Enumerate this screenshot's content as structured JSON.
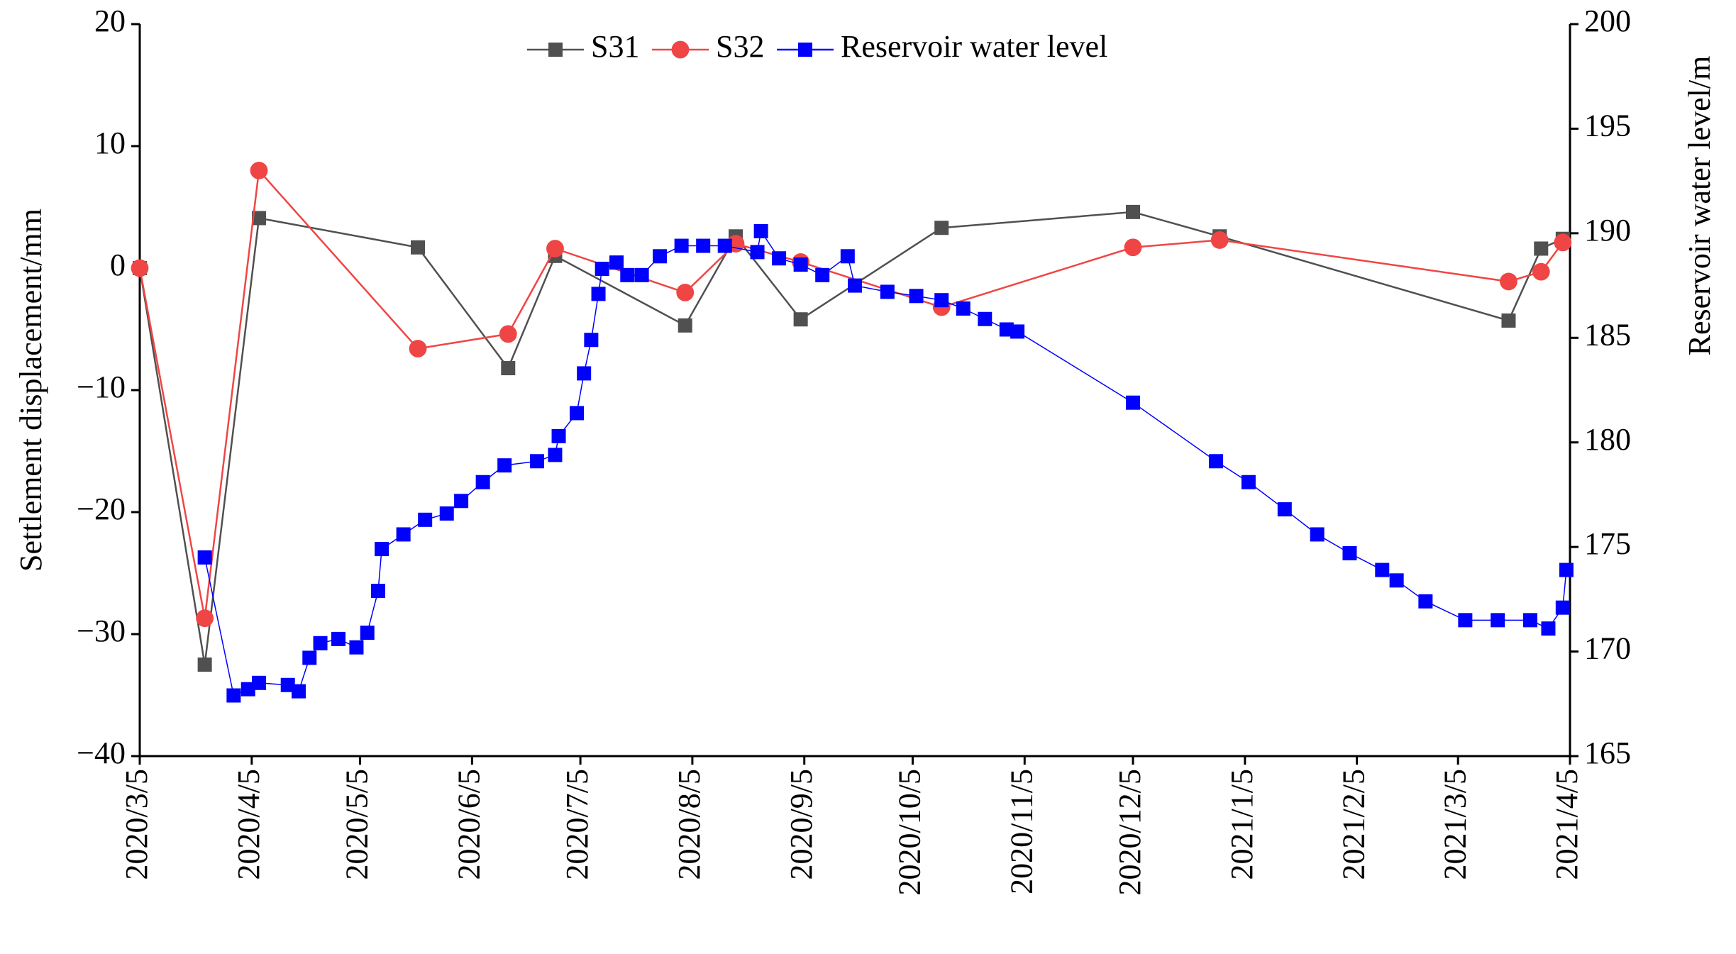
{
  "chart_data": {
    "type": "line",
    "ylabel": "Settlement displacement/mm",
    "y2label": "Reservoir water level/m",
    "legend": "upper center",
    "xlim": [
      "2020-03-05",
      "2021-04-05"
    ],
    "xticks": [
      {
        "value": "2020-03-05",
        "label": "2020/3/5"
      },
      {
        "value": "2020-04-05",
        "label": "2020/4/5"
      },
      {
        "value": "2020-05-05",
        "label": "2020/5/5"
      },
      {
        "value": "2020-06-05",
        "label": "2020/6/5"
      },
      {
        "value": "2020-07-05",
        "label": "2020/7/5"
      },
      {
        "value": "2020-08-05",
        "label": "2020/8/5"
      },
      {
        "value": "2020-09-05",
        "label": "2020/9/5"
      },
      {
        "value": "2020-10-05",
        "label": "2020/10/5"
      },
      {
        "value": "2020-11-05",
        "label": "2020/11/5"
      },
      {
        "value": "2020-12-05",
        "label": "2020/12/5"
      },
      {
        "value": "2021-01-05",
        "label": "2021/1/5"
      },
      {
        "value": "2021-02-05",
        "label": "2021/2/5"
      },
      {
        "value": "2021-03-05",
        "label": "2021/3/5"
      },
      {
        "value": "2021-04-05",
        "label": "2021/4/5"
      }
    ],
    "ylim": [
      -40,
      20
    ],
    "yticks": [
      {
        "value": -40,
        "label": "−40"
      },
      {
        "value": -30,
        "label": "−30"
      },
      {
        "value": -20,
        "label": "−20"
      },
      {
        "value": -10,
        "label": "−10"
      },
      0,
      10,
      20
    ],
    "y2lim": [
      165,
      200
    ],
    "y2ticks": [
      165,
      170,
      175,
      180,
      185,
      190,
      195,
      200
    ],
    "series": [
      {
        "name": "S31",
        "color": "#505050",
        "marker": "square",
        "x": [
          "2020-03-05",
          "2020-03-23",
          "2020-04-07",
          "2020-05-21",
          "2020-06-15",
          "2020-06-28",
          "2020-08-03",
          "2020-08-17",
          "2020-09-04",
          "2020-10-13",
          "2020-12-05",
          "2020-12-29",
          "2021-03-19",
          "2021-03-28",
          "2021-04-03"
        ],
        "values": [
          0,
          -32.5,
          4.1,
          1.7,
          -8.2,
          1.0,
          -4.7,
          2.6,
          -4.2,
          3.3,
          4.6,
          2.6,
          -4.3,
          1.6,
          2.4
        ]
      },
      {
        "name": "S32",
        "color": "#f04545",
        "marker": "circle",
        "x": [
          "2020-03-05",
          "2020-03-23",
          "2020-04-07",
          "2020-05-21",
          "2020-06-15",
          "2020-06-28",
          "2020-08-03",
          "2020-08-17",
          "2020-09-04",
          "2020-10-13",
          "2020-12-05",
          "2020-12-29",
          "2021-03-19",
          "2021-03-28",
          "2021-04-03"
        ],
        "values": [
          0,
          -28.7,
          8.0,
          -6.6,
          -5.4,
          1.6,
          -2.0,
          2.0,
          0.5,
          -3.2,
          1.7,
          2.3,
          -1.1,
          -0.3,
          2.1
        ]
      },
      {
        "name": "Reservoir water level",
        "color": "#0000ff",
        "marker": "square",
        "axis": "y2",
        "x": [
          "2020-03-23",
          "2020-03-31",
          "2020-04-04",
          "2020-04-07",
          "2020-04-15",
          "2020-04-18",
          "2020-04-21",
          "2020-04-24",
          "2020-04-29",
          "2020-05-04",
          "2020-05-07",
          "2020-05-10",
          "2020-05-11",
          "2020-05-17",
          "2020-05-23",
          "2020-05-29",
          "2020-06-02",
          "2020-06-08",
          "2020-06-14",
          "2020-06-23",
          "2020-06-28",
          "2020-06-29",
          "2020-07-04",
          "2020-07-06",
          "2020-07-08",
          "2020-07-10",
          "2020-07-11",
          "2020-07-15",
          "2020-07-18",
          "2020-07-22",
          "2020-07-27",
          "2020-08-02",
          "2020-08-08",
          "2020-08-14",
          "2020-08-23",
          "2020-08-24",
          "2020-08-29",
          "2020-09-04",
          "2020-09-10",
          "2020-09-17",
          "2020-09-19",
          "2020-09-28",
          "2020-10-06",
          "2020-10-13",
          "2020-10-19",
          "2020-10-25",
          "2020-10-31",
          "2020-11-03",
          "2020-12-05",
          "2020-12-28",
          "2021-01-06",
          "2021-01-16",
          "2021-01-25",
          "2021-02-03",
          "2021-02-12",
          "2021-02-16",
          "2021-02-24",
          "2021-03-07",
          "2021-03-16",
          "2021-03-25",
          "2021-03-30",
          "2021-04-03",
          "2021-04-04"
        ],
        "values": [
          174.5,
          167.9,
          168.2,
          168.5,
          168.4,
          168.1,
          169.7,
          170.4,
          170.6,
          170.2,
          170.9,
          172.9,
          174.9,
          175.6,
          176.3,
          176.6,
          177.2,
          178.1,
          178.9,
          179.1,
          179.4,
          180.3,
          181.4,
          183.3,
          184.9,
          187.1,
          188.3,
          188.6,
          188.0,
          188.0,
          188.9,
          189.4,
          189.4,
          189.4,
          189.1,
          190.1,
          188.8,
          188.5,
          188.0,
          188.9,
          187.5,
          187.2,
          187.0,
          186.8,
          186.4,
          185.9,
          185.4,
          185.3,
          181.9,
          179.1,
          178.1,
          176.8,
          175.6,
          174.7,
          173.9,
          173.4,
          172.4,
          171.5,
          171.5,
          171.5,
          171.1,
          172.1,
          173.9
        ]
      }
    ]
  }
}
